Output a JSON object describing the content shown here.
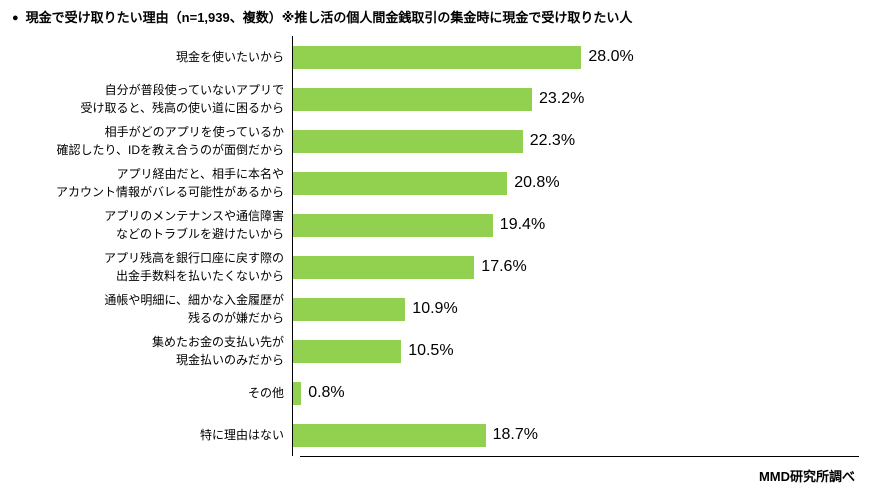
{
  "header": {
    "bullet": "●",
    "title": "現金で受け取りたい理由（n=1,939、複数）※推し活の個人間金銭取引の集金時に現金で受け取りたい人"
  },
  "source": "MMD研究所調べ",
  "chart_data": {
    "type": "bar",
    "orientation": "horizontal",
    "unit": "%",
    "bar_color": "#92D050",
    "axis_color": "#000000",
    "grid": false,
    "legend": false,
    "xlim": [
      0,
      30
    ],
    "title": "現金で受け取りたい理由（n=1,939、複数）※推し活の個人間金銭取引の集金時に現金で受け取りたい人",
    "categories": [
      "現金を使いたいから",
      "自分が普段使っていないアプリで受け取ると、残高の使い道に困るから",
      "相手がどのアプリを使っているか確認したり、IDを教え合うのが面倒だから",
      "アプリ経由だと、相手に本名やアカウント情報がバレる可能性があるから",
      "アプリのメンテナンスや通信障害などのトラブルを避けたいから",
      "アプリ残高を銀行口座に戻す際の出金手数料を払いたくないから",
      "通帳や明細に、細かな入金履歴が残るのが嫌だから",
      "集めたお金の支払い先が現金払いのみだから",
      "その他",
      "特に理由はない"
    ],
    "values": [
      28.0,
      23.2,
      22.3,
      20.8,
      19.4,
      17.6,
      10.9,
      10.5,
      0.8,
      18.7
    ],
    "rows": [
      {
        "label_lines": [
          "現金を使いたいから"
        ],
        "value": 28.0,
        "value_label": "28.0%"
      },
      {
        "label_lines": [
          "自分が普段使っていないアプリで",
          "受け取ると、残高の使い道に困るから"
        ],
        "value": 23.2,
        "value_label": "23.2%"
      },
      {
        "label_lines": [
          "相手がどのアプリを使っているか",
          "確認したり、IDを教え合うのが面倒だから"
        ],
        "value": 22.3,
        "value_label": "22.3%"
      },
      {
        "label_lines": [
          "アプリ経由だと、相手に本名や",
          "アカウント情報がバレる可能性があるから"
        ],
        "value": 20.8,
        "value_label": "20.8%"
      },
      {
        "label_lines": [
          "アプリのメンテナンスや通信障害",
          "などのトラブルを避けたいから"
        ],
        "value": 19.4,
        "value_label": "19.4%"
      },
      {
        "label_lines": [
          "アプリ残高を銀行口座に戻す際の",
          "出金手数料を払いたくないから"
        ],
        "value": 17.6,
        "value_label": "17.6%"
      },
      {
        "label_lines": [
          "通帳や明細に、細かな入金履歴が",
          "残るのが嫌だから"
        ],
        "value": 10.9,
        "value_label": "10.9%"
      },
      {
        "label_lines": [
          "集めたお金の支払い先が",
          "現金払いのみだから"
        ],
        "value": 10.5,
        "value_label": "10.5%"
      },
      {
        "label_lines": [
          "その他"
        ],
        "value": 0.8,
        "value_label": "0.8%"
      },
      {
        "label_lines": [
          "特に理由はない"
        ],
        "value": 18.7,
        "value_label": "18.7%"
      }
    ]
  }
}
